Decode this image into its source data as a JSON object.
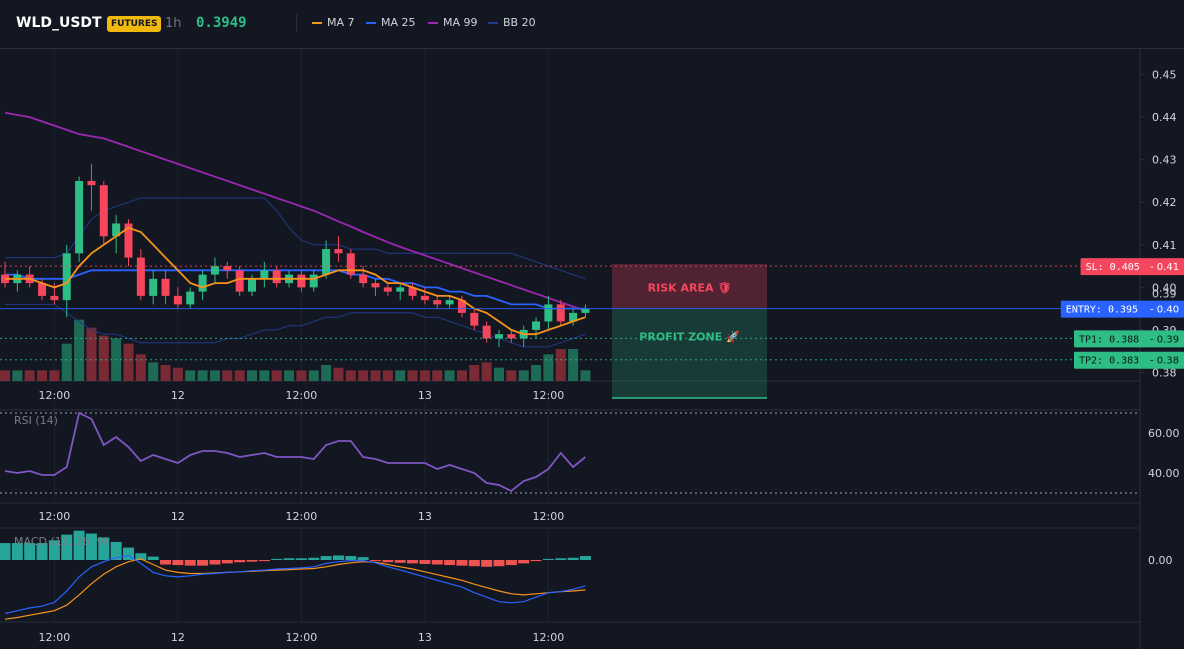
{
  "header": {
    "symbol": "WLD_USDT",
    "badge": "FUTURES",
    "timeframe": "1h",
    "price": "0.3949",
    "legend": [
      {
        "label": "MA 7",
        "color": "#f7931a"
      },
      {
        "label": "MA 25",
        "color": "#2962ff"
      },
      {
        "label": "MA 99",
        "color": "#9c27b0"
      },
      {
        "label": "BB 20",
        "color": "#1e3a8a"
      }
    ]
  },
  "colors": {
    "up": "#2ebd85",
    "down": "#f6465d",
    "bg": "#131722",
    "grid": "#1f2330"
  },
  "chart_data": [
    {
      "type": "candlestick",
      "x_ticks": [
        "12:00",
        "12",
        "12:00",
        "13",
        "12:00"
      ],
      "x_tick_index": [
        4,
        14,
        24,
        34,
        44
      ],
      "y_ticks": [
        "0.45",
        "0.44",
        "0.43",
        "0.42",
        "0.41",
        "0.40",
        "0.39",
        "0.38"
      ],
      "ylim": [
        0.378,
        0.456
      ],
      "candles": [
        [
          0.403,
          0.406,
          0.4,
          0.401
        ],
        [
          0.401,
          0.404,
          0.399,
          0.403
        ],
        [
          0.403,
          0.405,
          0.4,
          0.401
        ],
        [
          0.401,
          0.402,
          0.397,
          0.398
        ],
        [
          0.398,
          0.401,
          0.396,
          0.397
        ],
        [
          0.397,
          0.41,
          0.393,
          0.408
        ],
        [
          0.408,
          0.426,
          0.406,
          0.425
        ],
        [
          0.425,
          0.429,
          0.418,
          0.424
        ],
        [
          0.424,
          0.425,
          0.41,
          0.412
        ],
        [
          0.412,
          0.417,
          0.408,
          0.415
        ],
        [
          0.415,
          0.416,
          0.405,
          0.407
        ],
        [
          0.407,
          0.409,
          0.397,
          0.398
        ],
        [
          0.398,
          0.404,
          0.396,
          0.402
        ],
        [
          0.402,
          0.404,
          0.396,
          0.398
        ],
        [
          0.398,
          0.4,
          0.395,
          0.396
        ],
        [
          0.396,
          0.4,
          0.395,
          0.399
        ],
        [
          0.399,
          0.404,
          0.397,
          0.403
        ],
        [
          0.403,
          0.407,
          0.401,
          0.405
        ],
        [
          0.405,
          0.406,
          0.402,
          0.404
        ],
        [
          0.404,
          0.405,
          0.398,
          0.399
        ],
        [
          0.399,
          0.403,
          0.398,
          0.402
        ],
        [
          0.402,
          0.406,
          0.4,
          0.404
        ],
        [
          0.404,
          0.405,
          0.4,
          0.401
        ],
        [
          0.401,
          0.404,
          0.4,
          0.403
        ],
        [
          0.403,
          0.404,
          0.399,
          0.4
        ],
        [
          0.4,
          0.404,
          0.399,
          0.403
        ],
        [
          0.403,
          0.411,
          0.402,
          0.409
        ],
        [
          0.409,
          0.412,
          0.406,
          0.408
        ],
        [
          0.408,
          0.409,
          0.402,
          0.403
        ],
        [
          0.403,
          0.405,
          0.4,
          0.401
        ],
        [
          0.401,
          0.402,
          0.398,
          0.4
        ],
        [
          0.4,
          0.401,
          0.398,
          0.399
        ],
        [
          0.399,
          0.401,
          0.397,
          0.4
        ],
        [
          0.4,
          0.401,
          0.397,
          0.398
        ],
        [
          0.398,
          0.4,
          0.396,
          0.397
        ],
        [
          0.397,
          0.398,
          0.395,
          0.396
        ],
        [
          0.396,
          0.398,
          0.395,
          0.397
        ],
        [
          0.397,
          0.398,
          0.393,
          0.394
        ],
        [
          0.394,
          0.395,
          0.39,
          0.391
        ],
        [
          0.391,
          0.392,
          0.387,
          0.388
        ],
        [
          0.388,
          0.39,
          0.386,
          0.389
        ],
        [
          0.389,
          0.39,
          0.387,
          0.388
        ],
        [
          0.388,
          0.391,
          0.386,
          0.39
        ],
        [
          0.39,
          0.393,
          0.388,
          0.392
        ],
        [
          0.392,
          0.398,
          0.39,
          0.396
        ],
        [
          0.396,
          0.397,
          0.391,
          0.392
        ],
        [
          0.392,
          0.395,
          0.391,
          0.394
        ],
        [
          0.394,
          0.396,
          0.393,
          0.395
        ]
      ],
      "ma7": [
        0.402,
        0.402,
        0.402,
        0.401,
        0.4,
        0.401,
        0.405,
        0.408,
        0.41,
        0.412,
        0.414,
        0.413,
        0.41,
        0.407,
        0.404,
        0.401,
        0.4,
        0.401,
        0.401,
        0.402,
        0.402,
        0.402,
        0.402,
        0.402,
        0.402,
        0.402,
        0.403,
        0.404,
        0.404,
        0.404,
        0.403,
        0.401,
        0.401,
        0.4,
        0.399,
        0.398,
        0.398,
        0.397,
        0.395,
        0.394,
        0.392,
        0.39,
        0.389,
        0.389,
        0.39,
        0.391,
        0.392,
        0.393
      ],
      "ma25": [
        0.403,
        0.403,
        0.402,
        0.402,
        0.402,
        0.402,
        0.403,
        0.404,
        0.404,
        0.404,
        0.404,
        0.404,
        0.404,
        0.404,
        0.404,
        0.404,
        0.404,
        0.404,
        0.404,
        0.404,
        0.404,
        0.404,
        0.404,
        0.404,
        0.404,
        0.404,
        0.404,
        0.404,
        0.403,
        0.403,
        0.402,
        0.402,
        0.401,
        0.401,
        0.4,
        0.4,
        0.399,
        0.399,
        0.398,
        0.398,
        0.397,
        0.396,
        0.396,
        0.396,
        0.395,
        0.395,
        0.395,
        0.395
      ],
      "ma99": [
        0.441,
        0.4405,
        0.44,
        0.439,
        0.438,
        0.437,
        0.436,
        0.4355,
        0.435,
        0.434,
        0.433,
        0.432,
        0.431,
        0.43,
        0.429,
        0.428,
        0.427,
        0.426,
        0.425,
        0.424,
        0.423,
        0.422,
        0.421,
        0.42,
        0.419,
        0.418,
        0.4168,
        0.4155,
        0.4143,
        0.413,
        0.4118,
        0.4106,
        0.4095,
        0.4085,
        0.4075,
        0.4065,
        0.4055,
        0.4045,
        0.4035,
        0.4025,
        0.4015,
        0.4005,
        0.3995,
        0.3985,
        0.3975,
        0.3965,
        0.3955,
        0.3945
      ],
      "bb_upper": [
        0.407,
        0.407,
        0.407,
        0.407,
        0.407,
        0.408,
        0.412,
        0.416,
        0.418,
        0.419,
        0.42,
        0.421,
        0.421,
        0.421,
        0.421,
        0.421,
        0.421,
        0.421,
        0.421,
        0.421,
        0.421,
        0.421,
        0.418,
        0.414,
        0.411,
        0.41,
        0.41,
        0.41,
        0.409,
        0.409,
        0.409,
        0.408,
        0.408,
        0.408,
        0.408,
        0.408,
        0.408,
        0.408,
        0.408,
        0.408,
        0.408,
        0.408,
        0.407,
        0.406,
        0.405,
        0.404,
        0.403,
        0.402
      ],
      "bb_lower": [
        0.396,
        0.396,
        0.396,
        0.396,
        0.396,
        0.394,
        0.392,
        0.39,
        0.389,
        0.389,
        0.388,
        0.387,
        0.387,
        0.387,
        0.387,
        0.387,
        0.387,
        0.387,
        0.388,
        0.388,
        0.389,
        0.39,
        0.39,
        0.391,
        0.391,
        0.392,
        0.393,
        0.393,
        0.394,
        0.394,
        0.394,
        0.394,
        0.394,
        0.394,
        0.393,
        0.393,
        0.392,
        0.391,
        0.39,
        0.389,
        0.388,
        0.387,
        0.386,
        0.386,
        0.386,
        0.387,
        0.388,
        0.389
      ],
      "volume": [
        4,
        4,
        4,
        4,
        4,
        14,
        23,
        20,
        17,
        16,
        14,
        10,
        7,
        6,
        5,
        4,
        4,
        4,
        4,
        4,
        4,
        4,
        4,
        4,
        4,
        4,
        6,
        5,
        4,
        4,
        4,
        4,
        4,
        4,
        4,
        4,
        4,
        4,
        6,
        7,
        5,
        4,
        4,
        6,
        10,
        12,
        12,
        4
      ],
      "levels": [
        {
          "label": "SL: 0.405",
          "tag": "0.41",
          "value": 0.405,
          "color": "#f6465d"
        },
        {
          "label": "ENTRY: 0.395",
          "tag": "0.40",
          "value": 0.395,
          "color": "#2962ff"
        },
        {
          "label": "TP1: 0.388",
          "tag": "0.39",
          "value": 0.388,
          "color": "#2ebd85"
        },
        {
          "label": "TP2: 0.383",
          "tag": "0.38",
          "value": 0.383,
          "color": "#2ebd85"
        }
      ],
      "zones": [
        {
          "label": "RISK AREA",
          "from": 0.405,
          "to": 0.395
        },
        {
          "label": "PROFIT ZONE",
          "from": 0.395,
          "to": 0.378
        }
      ],
      "cut_label": "0.39"
    },
    {
      "type": "line",
      "title": "RSI (14)",
      "y_ticks": [
        "60.00",
        "40.00"
      ],
      "y_tick_values": [
        60,
        40
      ],
      "ylim": [
        25,
        75
      ],
      "bands": [
        70,
        30
      ],
      "values": [
        41,
        40,
        41,
        39,
        39,
        43,
        70,
        67,
        54,
        58,
        53,
        46,
        49,
        47,
        45,
        49,
        51,
        51,
        50,
        48,
        49,
        50,
        48,
        48,
        48,
        47,
        54,
        56,
        56,
        48,
        47,
        45,
        45,
        45,
        45,
        42,
        44,
        42,
        40,
        35,
        34,
        31,
        36,
        38,
        42,
        50,
        43,
        48
      ]
    },
    {
      "type": "bar",
      "title": "MACD (12, 26, 9)",
      "y_ticks": [
        "0.00"
      ],
      "y_tick_values": [
        0
      ],
      "ylim": [
        -0.011,
        0.0055
      ],
      "histogram": [
        0.003,
        0.003,
        0.003,
        0.003,
        0.0035,
        0.0045,
        0.0052,
        0.0047,
        0.004,
        0.0032,
        0.0022,
        0.0012,
        0.0006,
        -0.0008,
        -0.0009,
        -0.001,
        -0.001,
        -0.0008,
        -0.0006,
        -0.0004,
        -0.0003,
        -0.0002,
        0.0002,
        0.0003,
        0.0003,
        0.0004,
        0.0007,
        0.0008,
        0.0007,
        0.0005,
        -0.0002,
        -0.0004,
        -0.0005,
        -0.0006,
        -0.0007,
        -0.0008,
        -0.0009,
        -0.001,
        -0.0011,
        -0.0012,
        -0.0011,
        -0.0009,
        -0.0006,
        -0.0002,
        0.0002,
        0.0003,
        0.0004,
        0.0007
      ],
      "macd": [
        -0.0095,
        -0.009,
        -0.0085,
        -0.0082,
        -0.0075,
        -0.0055,
        -0.003,
        -0.0012,
        -0.0003,
        0.0004,
        0.0008,
        -0.0006,
        -0.0022,
        -0.0028,
        -0.003,
        -0.0028,
        -0.0025,
        -0.0024,
        -0.0022,
        -0.0021,
        -0.0019,
        -0.0018,
        -0.0016,
        -0.0015,
        -0.0014,
        -0.0012,
        -0.0006,
        -0.0003,
        -0.0001,
        -0.0001,
        -0.0005,
        -0.0012,
        -0.0018,
        -0.0024,
        -0.003,
        -0.0036,
        -0.0042,
        -0.0048,
        -0.0058,
        -0.0066,
        -0.0074,
        -0.0076,
        -0.0074,
        -0.0066,
        -0.0058,
        -0.0056,
        -0.0052,
        -0.0046
      ],
      "signal": [
        -0.0105,
        -0.0102,
        -0.0098,
        -0.0094,
        -0.009,
        -0.008,
        -0.0062,
        -0.0042,
        -0.0025,
        -0.0012,
        -0.0003,
        0.0002,
        -0.0008,
        -0.0018,
        -0.0022,
        -0.0024,
        -0.0024,
        -0.0023,
        -0.0022,
        -0.0021,
        -0.002,
        -0.0019,
        -0.0018,
        -0.0017,
        -0.0016,
        -0.0015,
        -0.0012,
        -0.0008,
        -0.0005,
        -0.0003,
        -0.0004,
        -0.0008,
        -0.0012,
        -0.0016,
        -0.0021,
        -0.0026,
        -0.0031,
        -0.0036,
        -0.0043,
        -0.0049,
        -0.0055,
        -0.006,
        -0.0062,
        -0.006,
        -0.0058,
        -0.0056,
        -0.0055,
        -0.0053
      ]
    }
  ]
}
